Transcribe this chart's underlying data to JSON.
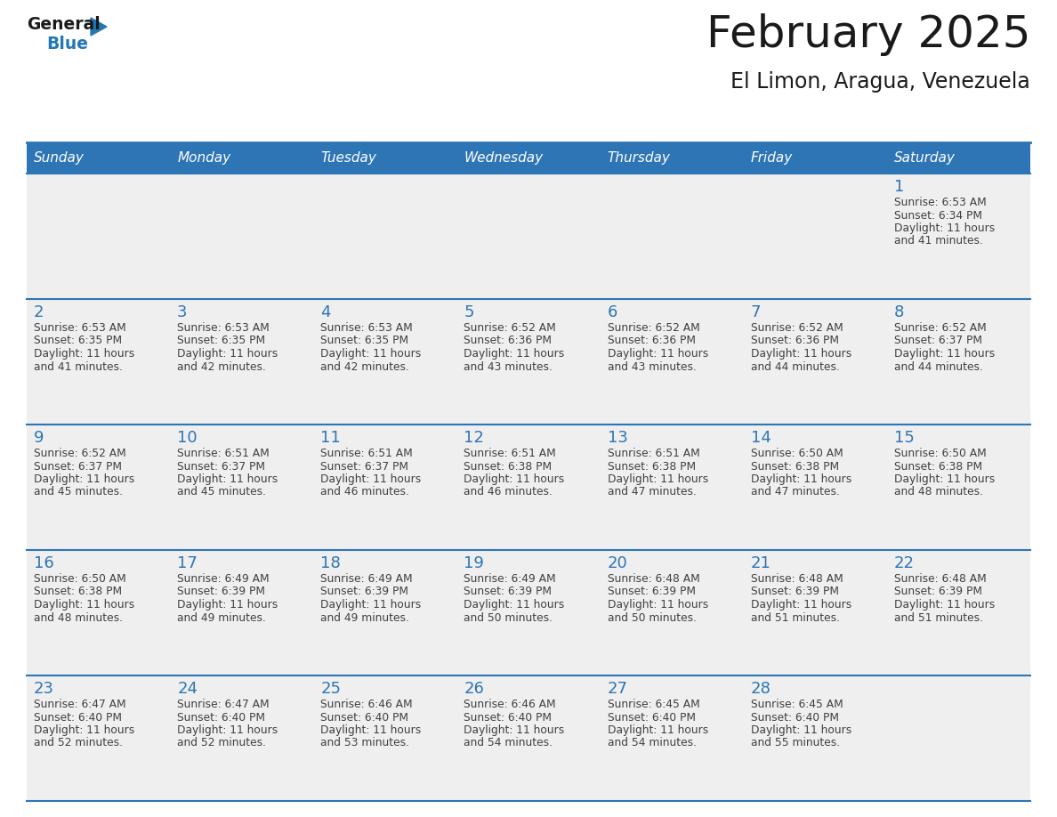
{
  "title": "February 2025",
  "subtitle": "El Limon, Aragua, Venezuela",
  "days_of_week": [
    "Sunday",
    "Monday",
    "Tuesday",
    "Wednesday",
    "Thursday",
    "Friday",
    "Saturday"
  ],
  "header_bg": "#2E75B6",
  "header_text_color": "#FFFFFF",
  "cell_bg": "#EFEFEF",
  "border_color": "#2E75B6",
  "day_number_color": "#2E75B6",
  "text_color": "#404040",
  "title_color": "#1A1A1A",
  "logo_general_color": "#1A1A1A",
  "logo_blue_color": "#2278B5",
  "calendar_data": [
    [
      null,
      null,
      null,
      null,
      null,
      null,
      {
        "day": 1,
        "sunrise": "6:53 AM",
        "sunset": "6:34 PM",
        "daylight": "11 hours and 41 minutes."
      }
    ],
    [
      {
        "day": 2,
        "sunrise": "6:53 AM",
        "sunset": "6:35 PM",
        "daylight": "11 hours and 41 minutes."
      },
      {
        "day": 3,
        "sunrise": "6:53 AM",
        "sunset": "6:35 PM",
        "daylight": "11 hours and 42 minutes."
      },
      {
        "day": 4,
        "sunrise": "6:53 AM",
        "sunset": "6:35 PM",
        "daylight": "11 hours and 42 minutes."
      },
      {
        "day": 5,
        "sunrise": "6:52 AM",
        "sunset": "6:36 PM",
        "daylight": "11 hours and 43 minutes."
      },
      {
        "day": 6,
        "sunrise": "6:52 AM",
        "sunset": "6:36 PM",
        "daylight": "11 hours and 43 minutes."
      },
      {
        "day": 7,
        "sunrise": "6:52 AM",
        "sunset": "6:36 PM",
        "daylight": "11 hours and 44 minutes."
      },
      {
        "day": 8,
        "sunrise": "6:52 AM",
        "sunset": "6:37 PM",
        "daylight": "11 hours and 44 minutes."
      }
    ],
    [
      {
        "day": 9,
        "sunrise": "6:52 AM",
        "sunset": "6:37 PM",
        "daylight": "11 hours and 45 minutes."
      },
      {
        "day": 10,
        "sunrise": "6:51 AM",
        "sunset": "6:37 PM",
        "daylight": "11 hours and 45 minutes."
      },
      {
        "day": 11,
        "sunrise": "6:51 AM",
        "sunset": "6:37 PM",
        "daylight": "11 hours and 46 minutes."
      },
      {
        "day": 12,
        "sunrise": "6:51 AM",
        "sunset": "6:38 PM",
        "daylight": "11 hours and 46 minutes."
      },
      {
        "day": 13,
        "sunrise": "6:51 AM",
        "sunset": "6:38 PM",
        "daylight": "11 hours and 47 minutes."
      },
      {
        "day": 14,
        "sunrise": "6:50 AM",
        "sunset": "6:38 PM",
        "daylight": "11 hours and 47 minutes."
      },
      {
        "day": 15,
        "sunrise": "6:50 AM",
        "sunset": "6:38 PM",
        "daylight": "11 hours and 48 minutes."
      }
    ],
    [
      {
        "day": 16,
        "sunrise": "6:50 AM",
        "sunset": "6:38 PM",
        "daylight": "11 hours and 48 minutes."
      },
      {
        "day": 17,
        "sunrise": "6:49 AM",
        "sunset": "6:39 PM",
        "daylight": "11 hours and 49 minutes."
      },
      {
        "day": 18,
        "sunrise": "6:49 AM",
        "sunset": "6:39 PM",
        "daylight": "11 hours and 49 minutes."
      },
      {
        "day": 19,
        "sunrise": "6:49 AM",
        "sunset": "6:39 PM",
        "daylight": "11 hours and 50 minutes."
      },
      {
        "day": 20,
        "sunrise": "6:48 AM",
        "sunset": "6:39 PM",
        "daylight": "11 hours and 50 minutes."
      },
      {
        "day": 21,
        "sunrise": "6:48 AM",
        "sunset": "6:39 PM",
        "daylight": "11 hours and 51 minutes."
      },
      {
        "day": 22,
        "sunrise": "6:48 AM",
        "sunset": "6:39 PM",
        "daylight": "11 hours and 51 minutes."
      }
    ],
    [
      {
        "day": 23,
        "sunrise": "6:47 AM",
        "sunset": "6:40 PM",
        "daylight": "11 hours and 52 minutes."
      },
      {
        "day": 24,
        "sunrise": "6:47 AM",
        "sunset": "6:40 PM",
        "daylight": "11 hours and 52 minutes."
      },
      {
        "day": 25,
        "sunrise": "6:46 AM",
        "sunset": "6:40 PM",
        "daylight": "11 hours and 53 minutes."
      },
      {
        "day": 26,
        "sunrise": "6:46 AM",
        "sunset": "6:40 PM",
        "daylight": "11 hours and 54 minutes."
      },
      {
        "day": 27,
        "sunrise": "6:45 AM",
        "sunset": "6:40 PM",
        "daylight": "11 hours and 54 minutes."
      },
      {
        "day": 28,
        "sunrise": "6:45 AM",
        "sunset": "6:40 PM",
        "daylight": "11 hours and 55 minutes."
      },
      null
    ]
  ]
}
